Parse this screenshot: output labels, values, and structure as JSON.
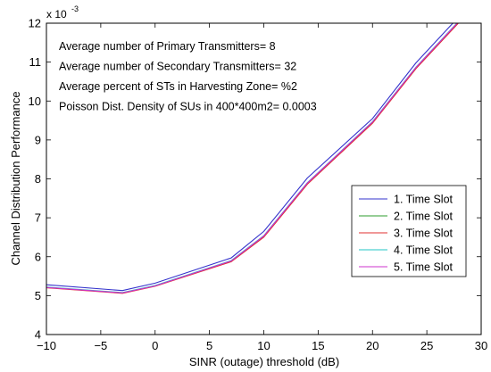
{
  "chart_data": {
    "type": "line",
    "xlabel": "SINR (outage) threshold (dB)",
    "ylabel": "Channel Distribution Performance",
    "y_exponent_label": "x 10",
    "y_exponent_power": "-3",
    "xlim": [
      -10,
      30
    ],
    "ylim": [
      4,
      12
    ],
    "x_ticks": [
      -10,
      -5,
      0,
      5,
      10,
      15,
      20,
      25,
      30
    ],
    "y_ticks": [
      4,
      5,
      6,
      7,
      8,
      9,
      10,
      11,
      12
    ],
    "grid": false,
    "legend_position": "bottom-right",
    "annotations": [
      "Average number of Primary Transmitters= 8",
      "Average number of Secondary Transmitters= 32",
      "Average percent of STs in Harvesting Zone= %2",
      "Poisson Dist. Density of SUs in 400*400m2= 0.0003"
    ],
    "x": [
      -10,
      -3,
      0,
      7,
      10,
      14,
      20,
      24,
      28
    ],
    "series": [
      {
        "name": "1. Time Slot",
        "color": "#3333cc",
        "values": [
          5.28,
          5.13,
          5.32,
          5.97,
          6.65,
          8.02,
          9.55,
          10.98,
          12.18
        ]
      },
      {
        "name": "2. Time Slot",
        "color": "#2e9e2e",
        "values": [
          5.21,
          5.07,
          5.25,
          5.88,
          6.52,
          7.88,
          9.45,
          10.85,
          12.05
        ]
      },
      {
        "name": "3. Time Slot",
        "color": "#e03030",
        "values": [
          5.2,
          5.06,
          5.24,
          5.87,
          6.5,
          7.86,
          9.43,
          10.83,
          12.03
        ]
      },
      {
        "name": "4. Time Slot",
        "color": "#22c5c5",
        "values": [
          5.22,
          5.08,
          5.26,
          5.9,
          6.54,
          7.9,
          9.47,
          10.87,
          12.07
        ]
      },
      {
        "name": "5. Time Slot",
        "color": "#cc33cc",
        "values": [
          5.21,
          5.07,
          5.25,
          5.89,
          6.53,
          7.89,
          9.46,
          10.86,
          12.06
        ]
      }
    ]
  }
}
